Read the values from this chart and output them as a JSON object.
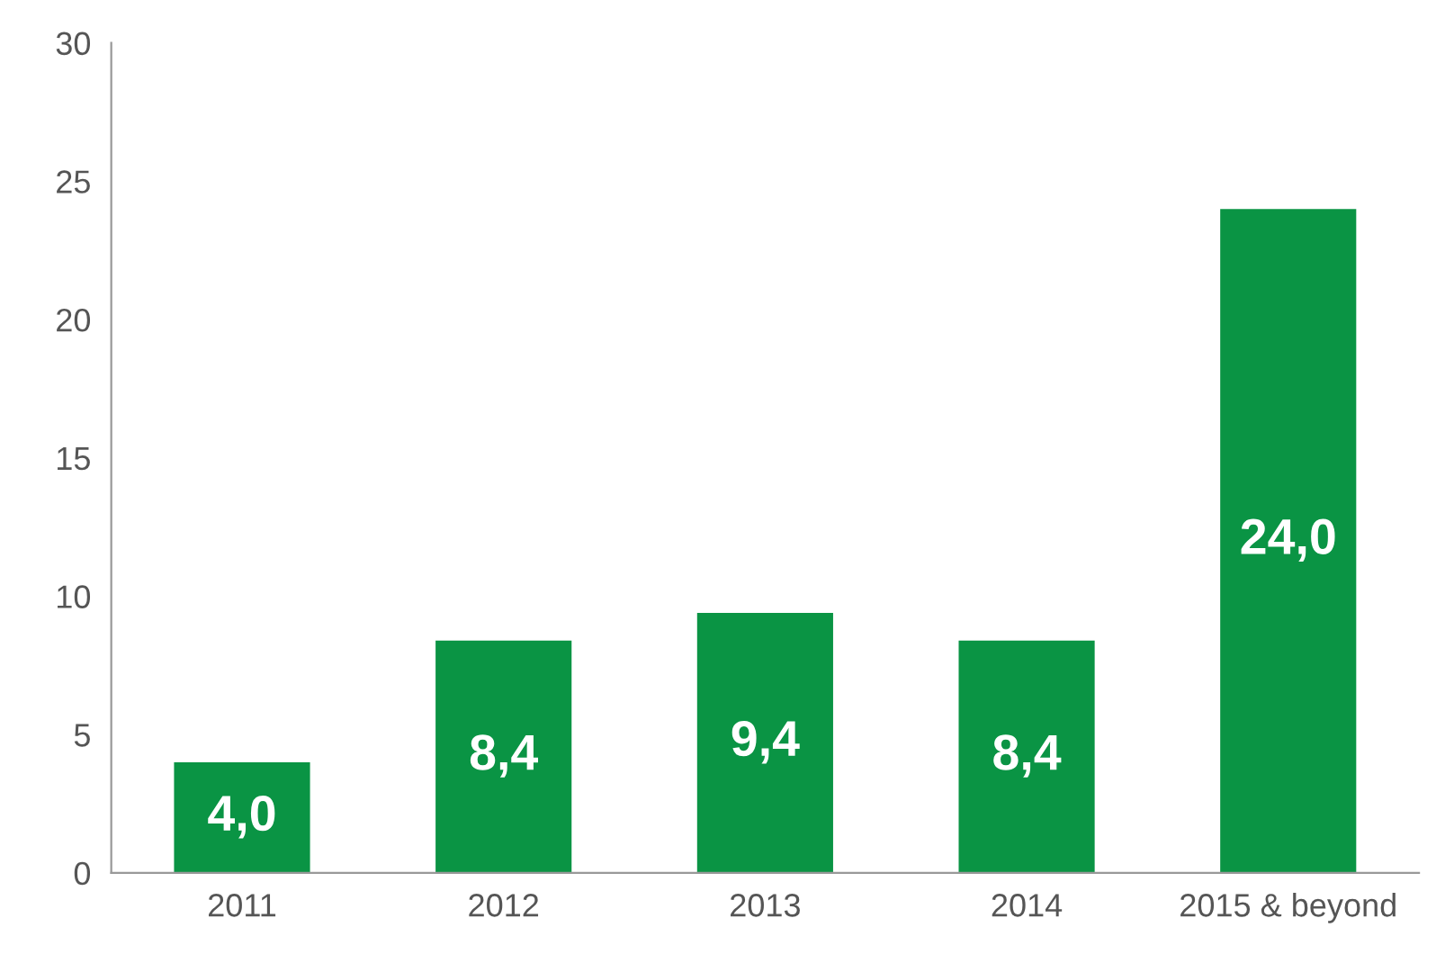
{
  "chart_data": {
    "type": "bar",
    "categories": [
      "2011",
      "2012",
      "2013",
      "2014",
      "2015 & beyond"
    ],
    "values": [
      4.0,
      8.4,
      9.4,
      8.4,
      24.0
    ],
    "value_labels": [
      "4,0",
      "8,4",
      "9,4",
      "8,4",
      "24,0"
    ],
    "color": "#0a9444",
    "ylim": [
      0,
      30
    ],
    "yticks": [
      0,
      5,
      10,
      15,
      20,
      25,
      30
    ],
    "grid": false,
    "legend": false
  }
}
